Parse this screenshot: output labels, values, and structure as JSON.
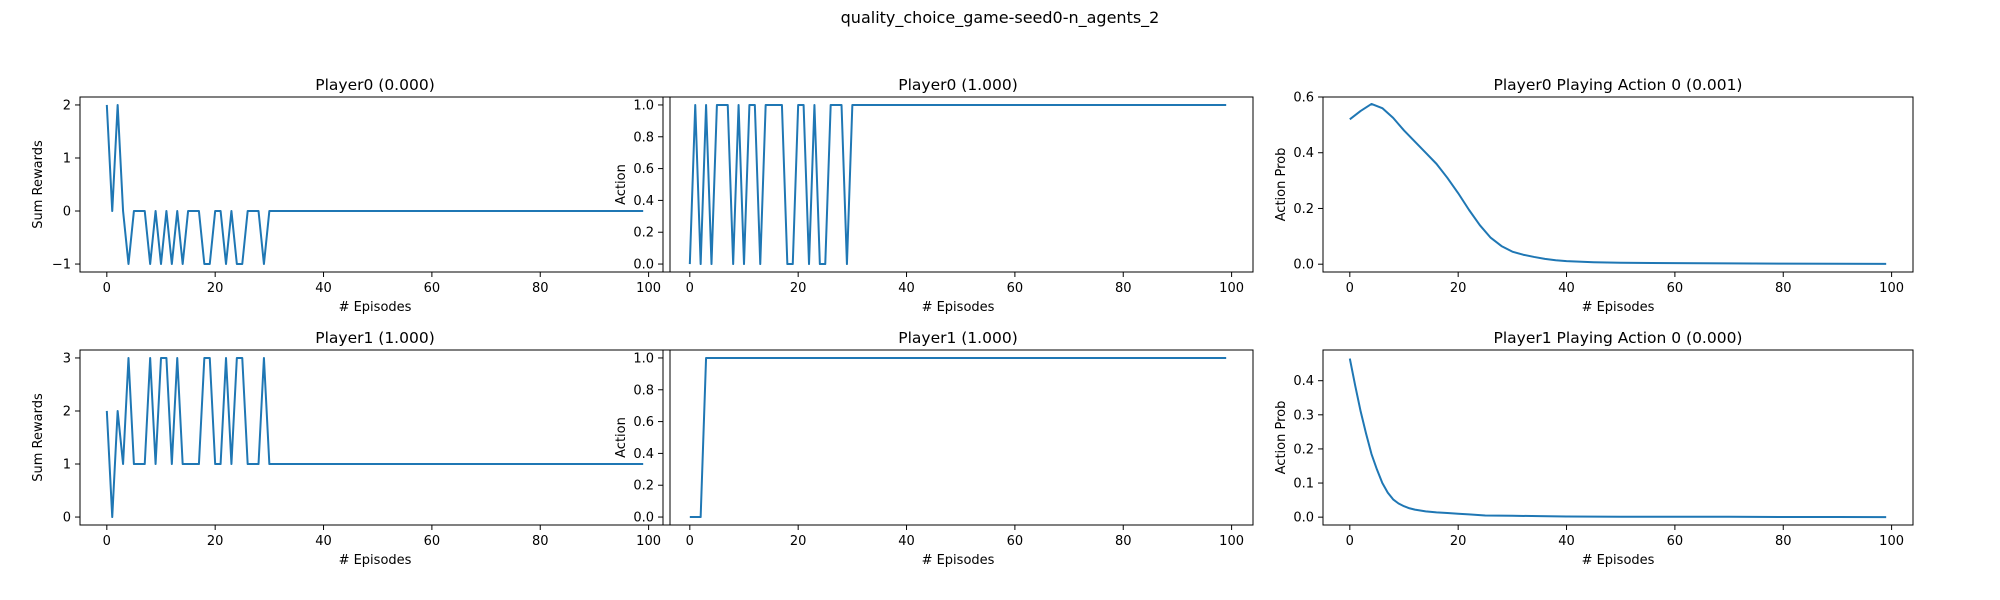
{
  "figure": {
    "suptitle": "quality_choice_game-seed0-n_agents_2"
  },
  "chart_data": [
    {
      "type": "line",
      "title": "Player0 (0.000)",
      "xlabel": "# Episodes",
      "ylabel": "Sum Rewards",
      "xlim": [
        -4.95,
        103.95
      ],
      "ylim": [
        -1.15,
        2.15
      ],
      "xticks": [
        0,
        20,
        40,
        60,
        80,
        100
      ],
      "yticks": [
        -1,
        0,
        1,
        2
      ],
      "ytick_decimals": 0,
      "color": "#1f77b4",
      "grid": false,
      "x_start": 0,
      "y": [
        2,
        0,
        2,
        0,
        -1,
        0,
        0,
        0,
        -1,
        0,
        -1,
        0,
        -1,
        0,
        -1,
        0,
        0,
        0,
        -1,
        -1,
        0,
        0,
        -1,
        0,
        -1,
        -1,
        0,
        0,
        0,
        -1,
        0,
        0,
        0,
        0,
        0,
        0,
        0,
        0,
        0,
        0,
        0,
        0,
        0,
        0,
        0,
        0,
        0,
        0,
        0,
        0,
        0,
        0,
        0,
        0,
        0,
        0,
        0,
        0,
        0,
        0,
        0,
        0,
        0,
        0,
        0,
        0,
        0,
        0,
        0,
        0,
        0,
        0,
        0,
        0,
        0,
        0,
        0,
        0,
        0,
        0,
        0,
        0,
        0,
        0,
        0,
        0,
        0,
        0,
        0,
        0,
        0,
        0,
        0,
        0,
        0,
        0,
        0,
        0,
        0,
        0
      ]
    },
    {
      "type": "line",
      "title": "Player0 (1.000)",
      "xlabel": "# Episodes",
      "ylabel": "Action",
      "xlim": [
        -4.95,
        103.95
      ],
      "ylim": [
        -0.05,
        1.05
      ],
      "xticks": [
        0,
        20,
        40,
        60,
        80,
        100
      ],
      "yticks": [
        0.0,
        0.2,
        0.4,
        0.6,
        0.8,
        1.0
      ],
      "ytick_decimals": 1,
      "color": "#1f77b4",
      "grid": false,
      "x_start": 0,
      "y": [
        0,
        1,
        0,
        1,
        0,
        1,
        1,
        1,
        0,
        1,
        0,
        1,
        1,
        0,
        1,
        1,
        1,
        1,
        0,
        0,
        1,
        1,
        0,
        1,
        0,
        0,
        1,
        1,
        1,
        0,
        1,
        1,
        1,
        1,
        1,
        1,
        1,
        1,
        1,
        1,
        1,
        1,
        1,
        1,
        1,
        1,
        1,
        1,
        1,
        1,
        1,
        1,
        1,
        1,
        1,
        1,
        1,
        1,
        1,
        1,
        1,
        1,
        1,
        1,
        1,
        1,
        1,
        1,
        1,
        1,
        1,
        1,
        1,
        1,
        1,
        1,
        1,
        1,
        1,
        1,
        1,
        1,
        1,
        1,
        1,
        1,
        1,
        1,
        1,
        1,
        1,
        1,
        1,
        1,
        1,
        1,
        1,
        1,
        1,
        1
      ]
    },
    {
      "type": "line",
      "title": "Player0 Playing Action 0 (0.001)",
      "xlabel": "# Episodes",
      "ylabel": "Action Prob",
      "xlim": [
        -4.95,
        103.95
      ],
      "ylim": [
        -0.028,
        0.6
      ],
      "xticks": [
        0,
        20,
        40,
        60,
        80,
        100
      ],
      "yticks": [
        0.0,
        0.2,
        0.4,
        0.6
      ],
      "ytick_decimals": 1,
      "color": "#1f77b4",
      "grid": false,
      "x": [
        0,
        2,
        4,
        6,
        8,
        10,
        12,
        14,
        16,
        18,
        20,
        22,
        24,
        26,
        28,
        30,
        32,
        34,
        36,
        38,
        40,
        45,
        50,
        60,
        70,
        80,
        90,
        99
      ],
      "y": [
        0.52,
        0.55,
        0.575,
        0.56,
        0.525,
        0.48,
        0.44,
        0.4,
        0.36,
        0.31,
        0.255,
        0.195,
        0.14,
        0.095,
        0.065,
        0.045,
        0.034,
        0.026,
        0.019,
        0.014,
        0.011,
        0.007,
        0.005,
        0.004,
        0.003,
        0.002,
        0.0015,
        0.001
      ]
    },
    {
      "type": "line",
      "title": "Player1 (1.000)",
      "xlabel": "# Episodes",
      "ylabel": "Sum Rewards",
      "xlim": [
        -4.95,
        103.95
      ],
      "ylim": [
        -0.15,
        3.15
      ],
      "xticks": [
        0,
        20,
        40,
        60,
        80,
        100
      ],
      "yticks": [
        0,
        1,
        2,
        3
      ],
      "ytick_decimals": 0,
      "color": "#1f77b4",
      "grid": false,
      "x_start": 0,
      "y": [
        2,
        0,
        2,
        1,
        3,
        1,
        1,
        1,
        3,
        1,
        3,
        3,
        1,
        3,
        1,
        1,
        1,
        1,
        3,
        3,
        1,
        1,
        3,
        1,
        3,
        3,
        1,
        1,
        1,
        3,
        1,
        1,
        1,
        1,
        1,
        1,
        1,
        1,
        1,
        1,
        1,
        1,
        1,
        1,
        1,
        1,
        1,
        1,
        1,
        1,
        1,
        1,
        1,
        1,
        1,
        1,
        1,
        1,
        1,
        1,
        1,
        1,
        1,
        1,
        1,
        1,
        1,
        1,
        1,
        1,
        1,
        1,
        1,
        1,
        1,
        1,
        1,
        1,
        1,
        1,
        1,
        1,
        1,
        1,
        1,
        1,
        1,
        1,
        1,
        1,
        1,
        1,
        1,
        1,
        1,
        1,
        1,
        1,
        1,
        1
      ]
    },
    {
      "type": "line",
      "title": "Player1 (1.000)",
      "xlabel": "# Episodes",
      "ylabel": "Action",
      "xlim": [
        -4.95,
        103.95
      ],
      "ylim": [
        -0.05,
        1.05
      ],
      "xticks": [
        0,
        20,
        40,
        60,
        80,
        100
      ],
      "yticks": [
        0.0,
        0.2,
        0.4,
        0.6,
        0.8,
        1.0
      ],
      "ytick_decimals": 1,
      "color": "#1f77b4",
      "grid": false,
      "x_start": 0,
      "y": [
        0,
        0,
        0,
        1,
        1,
        1,
        1,
        1,
        1,
        1,
        1,
        1,
        1,
        1,
        1,
        1,
        1,
        1,
        1,
        1,
        1,
        1,
        1,
        1,
        1,
        1,
        1,
        1,
        1,
        1,
        1,
        1,
        1,
        1,
        1,
        1,
        1,
        1,
        1,
        1,
        1,
        1,
        1,
        1,
        1,
        1,
        1,
        1,
        1,
        1,
        1,
        1,
        1,
        1,
        1,
        1,
        1,
        1,
        1,
        1,
        1,
        1,
        1,
        1,
        1,
        1,
        1,
        1,
        1,
        1,
        1,
        1,
        1,
        1,
        1,
        1,
        1,
        1,
        1,
        1,
        1,
        1,
        1,
        1,
        1,
        1,
        1,
        1,
        1,
        1,
        1,
        1,
        1,
        1,
        1,
        1,
        1,
        1,
        1,
        1
      ]
    },
    {
      "type": "line",
      "title": "Player1 Playing Action 0 (0.000)",
      "xlabel": "# Episodes",
      "ylabel": "Action Prob",
      "xlim": [
        -4.95,
        103.95
      ],
      "ylim": [
        -0.023,
        0.49
      ],
      "xticks": [
        0,
        20,
        40,
        60,
        80,
        100
      ],
      "yticks": [
        0.0,
        0.1,
        0.2,
        0.3,
        0.4
      ],
      "ytick_decimals": 1,
      "color": "#1f77b4",
      "grid": false,
      "x": [
        0,
        1,
        2,
        3,
        4,
        5,
        6,
        7,
        8,
        9,
        10,
        11,
        12,
        14,
        16,
        18,
        20,
        22,
        25,
        30,
        35,
        40,
        50,
        60,
        70,
        80,
        90,
        99
      ],
      "y": [
        0.465,
        0.385,
        0.31,
        0.245,
        0.185,
        0.14,
        0.1,
        0.072,
        0.052,
        0.04,
        0.032,
        0.026,
        0.022,
        0.017,
        0.014,
        0.012,
        0.01,
        0.008,
        0.005,
        0.004,
        0.003,
        0.002,
        0.001,
        0.001,
        0.001,
        0.0005,
        0.0003,
        0.0002
      ]
    }
  ]
}
